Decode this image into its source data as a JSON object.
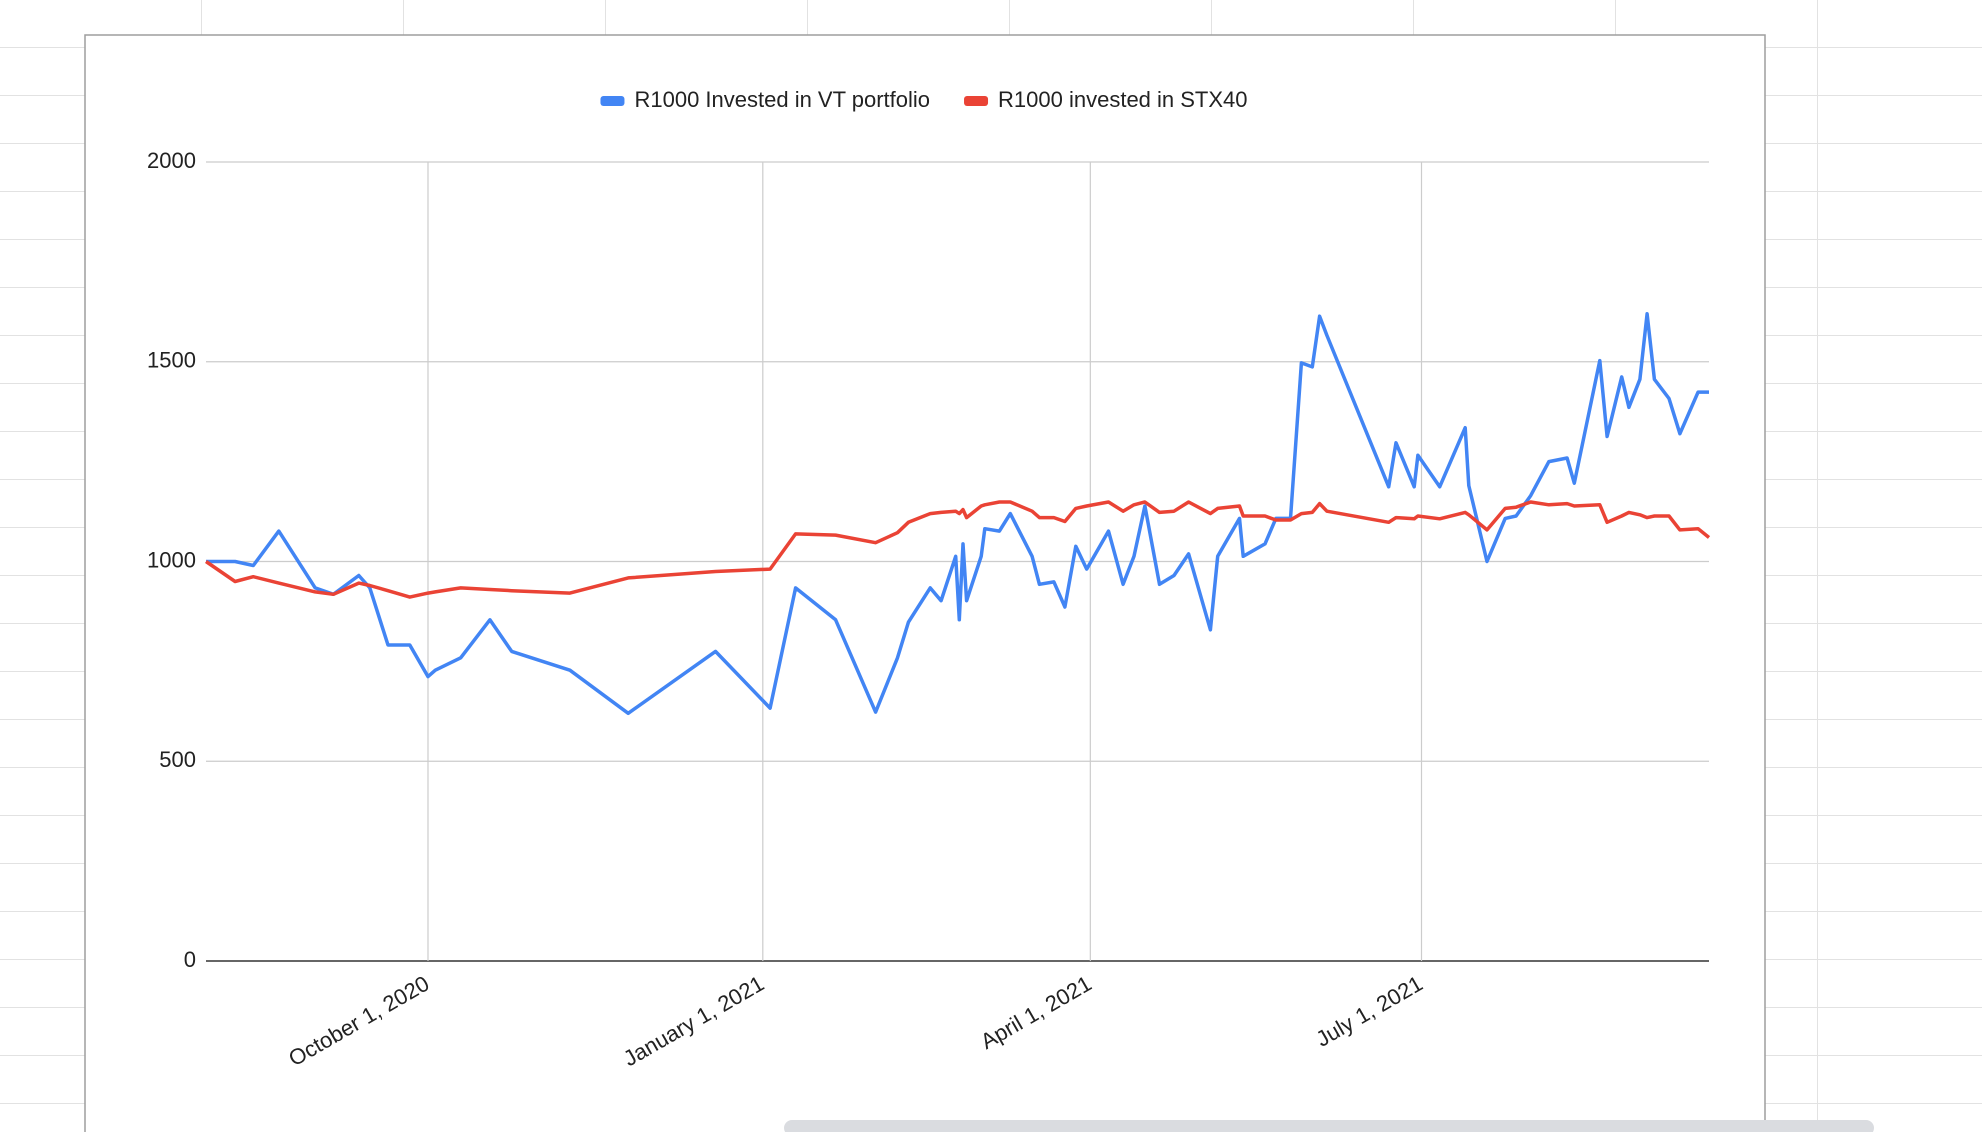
{
  "chart_data": {
    "type": "line",
    "x": [
      "2020-08-01",
      "2020-08-09",
      "2020-08-14",
      "2020-08-21",
      "2020-08-31",
      "2020-09-05",
      "2020-09-12",
      "2020-09-15",
      "2020-09-20",
      "2020-09-26",
      "2020-10-01",
      "2020-10-03",
      "2020-10-10",
      "2020-10-18",
      "2020-10-24",
      "2020-11-09",
      "2020-11-25",
      "2020-12-19",
      "2021-01-03",
      "2021-01-10",
      "2021-01-21",
      "2021-02-01",
      "2021-02-07",
      "2021-02-10",
      "2021-02-16",
      "2021-02-19",
      "2021-02-23",
      "2021-02-24",
      "2021-02-25",
      "2021-02-26",
      "2021-03-02",
      "2021-03-03",
      "2021-03-07",
      "2021-03-10",
      "2021-03-16",
      "2021-03-18",
      "2021-03-22",
      "2021-03-25",
      "2021-03-28",
      "2021-03-31",
      "2021-04-06",
      "2021-04-10",
      "2021-04-13",
      "2021-04-16",
      "2021-04-20",
      "2021-04-24",
      "2021-04-28",
      "2021-05-04",
      "2021-05-06",
      "2021-05-12",
      "2021-05-13",
      "2021-05-19",
      "2021-05-22",
      "2021-05-26",
      "2021-05-29",
      "2021-06-01",
      "2021-06-03",
      "2021-06-05",
      "2021-06-22",
      "2021-06-24",
      "2021-06-29",
      "2021-06-30",
      "2021-07-06",
      "2021-07-13",
      "2021-07-14",
      "2021-07-19",
      "2021-07-24",
      "2021-07-27",
      "2021-07-31",
      "2021-08-05",
      "2021-08-10",
      "2021-08-12",
      "2021-08-19",
      "2021-08-21",
      "2021-08-25",
      "2021-08-27",
      "2021-08-30",
      "2021-09-01",
      "2021-09-03",
      "2021-09-07",
      "2021-09-10",
      "2021-09-15",
      "2021-09-18"
    ],
    "series": [
      {
        "name": "R1000 Invested in VT portfolio",
        "color": "#4285f4",
        "values": [
          1000,
          1000,
          990,
          1076,
          934,
          918,
          965,
          934,
          791,
          791,
          712,
          728,
          759,
          854,
          775,
          728,
          620,
          775,
          633,
          934,
          854,
          623,
          759,
          848,
          934,
          902,
          1013,
          854,
          1044,
          902,
          1013,
          1082,
          1076,
          1120,
          1013,
          943,
          949,
          886,
          1038,
          981,
          1076,
          943,
          1013,
          1139,
          943,
          965,
          1019,
          829,
          1013,
          1108,
          1013,
          1044,
          1108,
          1108,
          1497,
          1487,
          1614,
          1566,
          1187,
          1297,
          1187,
          1266,
          1187,
          1335,
          1190,
          1000,
          1108,
          1114,
          1165,
          1250,
          1259,
          1196,
          1503,
          1313,
          1462,
          1386,
          1456,
          1620,
          1456,
          1408,
          1320,
          1424,
          1424
        ]
      },
      {
        "name": "R1000 invested in STX40",
        "color": "#ea4335",
        "values": [
          1000,
          950,
          962,
          946,
          924,
          918,
          946,
          940,
          927,
          911,
          921,
          924,
          934,
          930,
          927,
          921,
          959,
          975,
          981,
          1069,
          1066,
          1047,
          1072,
          1098,
          1120,
          1123,
          1126,
          1120,
          1130,
          1110,
          1139,
          1142,
          1149,
          1149,
          1126,
          1110,
          1110,
          1100,
          1133,
          1139,
          1149,
          1126,
          1142,
          1149,
          1123,
          1126,
          1149,
          1120,
          1133,
          1139,
          1114,
          1114,
          1104,
          1104,
          1120,
          1123,
          1145,
          1126,
          1098,
          1110,
          1107,
          1114,
          1107,
          1123,
          1117,
          1079,
          1133,
          1136,
          1149,
          1142,
          1145,
          1139,
          1142,
          1098,
          1114,
          1123,
          1117,
          1110,
          1114,
          1114,
          1079,
          1082,
          1060
        ]
      }
    ],
    "xlim": [
      "2020-08-01",
      "2021-09-18"
    ],
    "xticks": [
      {
        "value": "2020-10-01",
        "label": "October 1, 2020"
      },
      {
        "value": "2021-01-01",
        "label": "January 1, 2021"
      },
      {
        "value": "2021-04-01",
        "label": "April 1, 2021"
      },
      {
        "value": "2021-07-01",
        "label": "July 1, 2021"
      }
    ],
    "ylim": [
      0,
      2000
    ],
    "yticks": [
      0,
      500,
      1000,
      1500,
      2000
    ],
    "grid": true,
    "legend": "top"
  }
}
